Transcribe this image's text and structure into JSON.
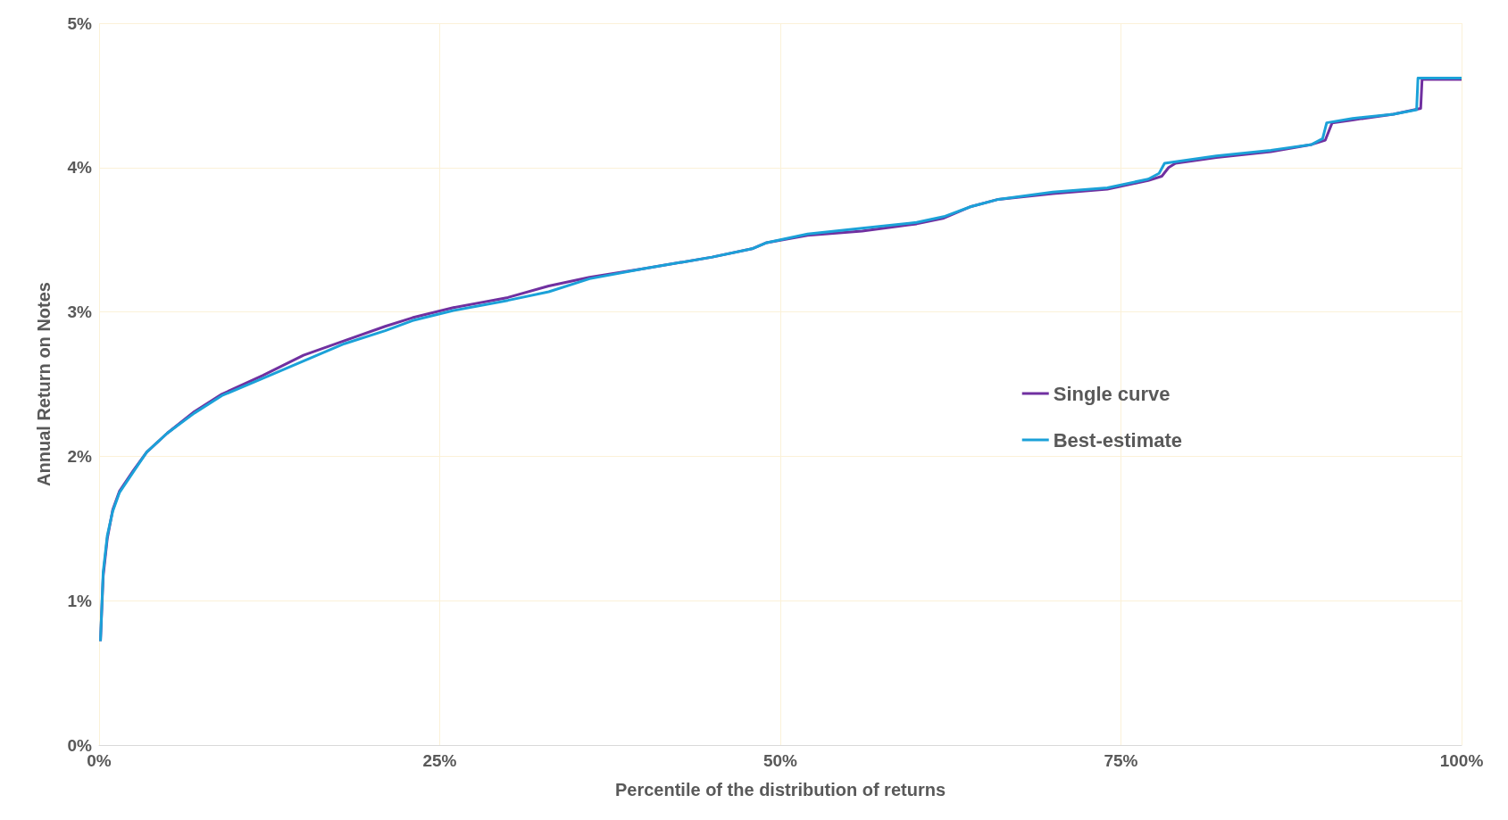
{
  "chart_data": {
    "type": "line",
    "xlabel": "Percentile of the distribution of returns",
    "ylabel": "Annual Return on Notes",
    "xlim": [
      0,
      100
    ],
    "xticks": [
      {
        "value": 0,
        "label": "0%"
      },
      {
        "value": 25,
        "label": "25%"
      },
      {
        "value": 50,
        "label": "50%"
      },
      {
        "value": 75,
        "label": "75%"
      },
      {
        "value": 100,
        "label": "100%"
      }
    ],
    "ylim": [
      0,
      5
    ],
    "yticks": [
      {
        "value": 0,
        "label": "0%"
      },
      {
        "value": 1,
        "label": "1%"
      },
      {
        "value": 2,
        "label": "2%"
      },
      {
        "value": 3,
        "label": "3%"
      },
      {
        "value": 4,
        "label": "4%"
      },
      {
        "value": 5,
        "label": "5%"
      }
    ],
    "grid": true,
    "legend": "right",
    "marker": "none",
    "line_style": "solid",
    "series": [
      {
        "name": "Single curve",
        "color": "#7030a0",
        "x": [
          0.1,
          0.3,
          0.6,
          1,
          1.5,
          2.5,
          3.5,
          5,
          7,
          9,
          12,
          15,
          18,
          21,
          23,
          26,
          30,
          33,
          36,
          40,
          45,
          48,
          49,
          52,
          56,
          60,
          62,
          64,
          66,
          70,
          74,
          77,
          78,
          78.5,
          79,
          82,
          86,
          89,
          90,
          90.5,
          92,
          95,
          97,
          97.1,
          100
        ],
        "values": [
          0.72,
          1.17,
          1.43,
          1.63,
          1.76,
          1.9,
          2.03,
          2.16,
          2.31,
          2.43,
          2.56,
          2.7,
          2.8,
          2.9,
          2.96,
          3.03,
          3.1,
          3.18,
          3.24,
          3.3,
          3.38,
          3.44,
          3.48,
          3.53,
          3.56,
          3.61,
          3.65,
          3.73,
          3.78,
          3.82,
          3.85,
          3.91,
          3.94,
          4.0,
          4.03,
          4.07,
          4.11,
          4.16,
          4.19,
          4.31,
          4.33,
          4.37,
          4.41,
          4.61,
          4.61
        ]
      },
      {
        "name": "Best-estimate",
        "color": "#1ba1d8",
        "x": [
          0.1,
          0.3,
          0.6,
          1,
          1.5,
          2.5,
          3.5,
          5,
          7,
          9,
          12,
          15,
          18,
          21,
          23,
          26,
          30,
          33,
          36,
          40,
          45,
          48,
          49,
          52,
          56,
          60,
          62,
          64,
          66,
          70,
          74,
          77,
          77.8,
          78.2,
          82,
          86,
          89,
          89.8,
          90.1,
          92,
          95,
          96.7,
          96.8,
          100
        ],
        "values": [
          0.72,
          1.2,
          1.45,
          1.62,
          1.75,
          1.89,
          2.03,
          2.16,
          2.3,
          2.42,
          2.54,
          2.66,
          2.78,
          2.87,
          2.94,
          3.01,
          3.08,
          3.14,
          3.23,
          3.3,
          3.38,
          3.44,
          3.48,
          3.54,
          3.58,
          3.62,
          3.66,
          3.73,
          3.78,
          3.83,
          3.86,
          3.92,
          3.96,
          4.03,
          4.08,
          4.12,
          4.16,
          4.2,
          4.31,
          4.34,
          4.37,
          4.4,
          4.62,
          4.62
        ]
      }
    ]
  }
}
